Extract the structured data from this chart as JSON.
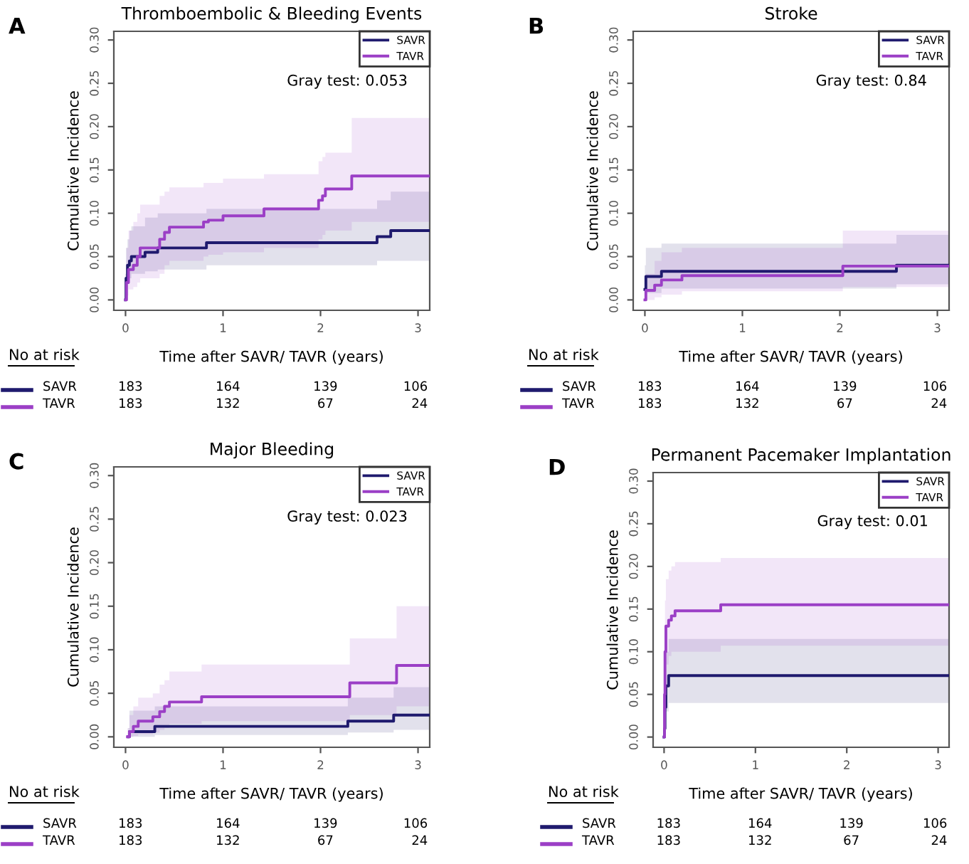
{
  "chart_data": [
    {
      "type": "step",
      "title": "Thromboembolic & Bleeding Events",
      "xlabel": "Time after SAVR/ TAVR (years)",
      "ylabel": "Cumulative Incidence",
      "xlim": [
        -0.12,
        3.12
      ],
      "xticks": [
        0,
        1,
        2,
        3
      ],
      "ylim": [
        -0.012,
        0.31
      ],
      "yticks": [
        {
          "value": 0,
          "label": "0.00"
        },
        {
          "value": 0.05,
          "label": "0.05"
        },
        {
          "value": 0.1,
          "label": "0.10"
        },
        {
          "value": 0.15,
          "label": "0.15"
        },
        {
          "value": 0.2,
          "label": "0.20"
        },
        {
          "value": 0.25,
          "label": "0.25"
        },
        {
          "value": 0.3,
          "label": "0.30"
        }
      ],
      "grid": false,
      "legend": "top right",
      "annotations": [
        "A",
        "Gray test: 0.053",
        "No at risk",
        "SAVR",
        "183",
        "164",
        "139",
        "106",
        "TAVR",
        "183",
        "132",
        "67",
        "24"
      ],
      "series": [
        {
          "name": "SAVR",
          "color": "#1f1a6e",
          "x": [
            0,
            0.005,
            0.02,
            0.04,
            0.06,
            0.2,
            0.33,
            0.83,
            2.58,
            2.72,
            3.12
          ],
          "values": [
            0,
            0.025,
            0.04,
            0.045,
            0.05,
            0.055,
            0.06,
            0.066,
            0.073,
            0.08,
            0.08
          ],
          "lower": [
            0,
            0.015,
            0.02,
            0.025,
            0.03,
            0.033,
            0.035,
            0.04,
            0.045,
            0.045,
            0.045
          ],
          "upper": [
            0.03,
            0.06,
            0.07,
            0.08,
            0.085,
            0.095,
            0.1,
            0.105,
            0.115,
            0.125,
            0.125
          ]
        },
        {
          "name": "TAVR",
          "color": "#9b3fc6",
          "x": [
            0,
            0.01,
            0.03,
            0.08,
            0.12,
            0.15,
            0.35,
            0.4,
            0.45,
            0.8,
            0.85,
            1.0,
            1.42,
            1.98,
            2.02,
            2.05,
            2.32,
            3.12
          ],
          "values": [
            0,
            0.02,
            0.035,
            0.04,
            0.05,
            0.06,
            0.07,
            0.078,
            0.084,
            0.09,
            0.092,
            0.097,
            0.105,
            0.115,
            0.12,
            0.128,
            0.143,
            0.143
          ],
          "lower": [
            0,
            0.005,
            0.012,
            0.015,
            0.02,
            0.025,
            0.03,
            0.04,
            0.045,
            0.05,
            0.052,
            0.055,
            0.06,
            0.07,
            0.075,
            0.08,
            0.09,
            0.09
          ],
          "upper": [
            0.03,
            0.06,
            0.08,
            0.09,
            0.1,
            0.11,
            0.12,
            0.125,
            0.13,
            0.135,
            0.135,
            0.14,
            0.145,
            0.16,
            0.165,
            0.17,
            0.21,
            0.21
          ]
        }
      ]
    },
    {
      "type": "step",
      "title": "Stroke",
      "xlabel": "Time after SAVR/ TAVR (years)",
      "ylabel": "Cumulative Incidence",
      "xlim": [
        -0.12,
        3.12
      ],
      "xticks": [
        0,
        1,
        2,
        3
      ],
      "ylim": [
        -0.012,
        0.31
      ],
      "yticks": [
        {
          "value": 0,
          "label": "0.00"
        },
        {
          "value": 0.05,
          "label": "0.05"
        },
        {
          "value": 0.1,
          "label": "0.10"
        },
        {
          "value": 0.15,
          "label": "0.15"
        },
        {
          "value": 0.2,
          "label": "0.20"
        },
        {
          "value": 0.25,
          "label": "0.25"
        },
        {
          "value": 0.3,
          "label": "0.30"
        }
      ],
      "grid": false,
      "legend": "top right",
      "annotations": [
        "B",
        "Gray test: 0.84",
        "No at risk",
        "SAVR",
        "183",
        "164",
        "139",
        "106",
        "TAVR",
        "183",
        "132",
        "67",
        "24"
      ],
      "series": [
        {
          "name": "SAVR",
          "color": "#1f1a6e",
          "x": [
            0,
            0.01,
            0.17,
            2.58,
            3.12
          ],
          "values": [
            0.012,
            0.027,
            0.033,
            0.04,
            0.04
          ],
          "lower": [
            0,
            0.008,
            0.013,
            0.018,
            0.018
          ],
          "upper": [
            0.04,
            0.06,
            0.065,
            0.075,
            0.075
          ]
        },
        {
          "name": "TAVR",
          "color": "#9b3fc6",
          "x": [
            0,
            0.01,
            0.1,
            0.17,
            0.38,
            2.03,
            3.12
          ],
          "values": [
            0,
            0.011,
            0.017,
            0.023,
            0.028,
            0.039,
            0.039
          ],
          "lower": [
            0,
            0,
            0.003,
            0.006,
            0.01,
            0.015,
            0.015
          ],
          "upper": [
            0.02,
            0.03,
            0.045,
            0.055,
            0.06,
            0.08,
            0.08
          ]
        }
      ]
    },
    {
      "type": "step",
      "title": "Major Bleeding",
      "xlabel": "Time after SAVR/ TAVR (years)",
      "ylabel": "Cumulative Incidence",
      "xlim": [
        -0.12,
        3.12
      ],
      "xticks": [
        0,
        1,
        2,
        3
      ],
      "ylim": [
        -0.012,
        0.31
      ],
      "yticks": [
        {
          "value": 0,
          "label": "0.00"
        },
        {
          "value": 0.05,
          "label": "0.05"
        },
        {
          "value": 0.1,
          "label": "0.10"
        },
        {
          "value": 0.15,
          "label": "0.15"
        },
        {
          "value": 0.2,
          "label": "0.20"
        },
        {
          "value": 0.25,
          "label": "0.25"
        },
        {
          "value": 0.3,
          "label": "0.30"
        }
      ],
      "grid": false,
      "legend": "top right",
      "annotations": [
        "C",
        "Gray test: 0.023",
        "No at risk",
        "SAVR",
        "183",
        "164",
        "139",
        "106",
        "TAVR",
        "183",
        "132",
        "67",
        "24"
      ],
      "series": [
        {
          "name": "SAVR",
          "color": "#1f1a6e",
          "x": [
            0.03,
            0.04,
            0.3,
            2.28,
            2.75,
            3.12
          ],
          "values": [
            0,
            0.006,
            0.012,
            0.018,
            0.025,
            0.025
          ],
          "lower": [
            0,
            0,
            0.002,
            0.005,
            0.008,
            0.008
          ],
          "upper": [
            0.01,
            0.03,
            0.035,
            0.045,
            0.057,
            0.057
          ]
        },
        {
          "name": "TAVR",
          "color": "#9b3fc6",
          "x": [
            0.02,
            0.04,
            0.08,
            0.13,
            0.28,
            0.35,
            0.4,
            0.45,
            0.78,
            2.3,
            2.78,
            3.12
          ],
          "values": [
            0,
            0.006,
            0.012,
            0.018,
            0.023,
            0.029,
            0.035,
            0.04,
            0.046,
            0.062,
            0.082,
            0.082
          ],
          "lower": [
            0,
            0,
            0.001,
            0.003,
            0.005,
            0.008,
            0.01,
            0.015,
            0.018,
            0.025,
            0.035,
            0.035
          ],
          "upper": [
            0.01,
            0.025,
            0.035,
            0.045,
            0.05,
            0.06,
            0.065,
            0.075,
            0.083,
            0.113,
            0.15,
            0.15
          ]
        }
      ]
    },
    {
      "type": "step",
      "title": "Permanent Pacemaker Implantation",
      "xlabel": "Time after SAVR/ TAVR (years)",
      "ylabel": "Cumulative Incidence",
      "xlim": [
        -0.12,
        3.12
      ],
      "xticks": [
        0,
        1,
        2,
        3
      ],
      "ylim": [
        -0.012,
        0.31
      ],
      "yticks": [
        {
          "value": 0,
          "label": "0.00"
        },
        {
          "value": 0.05,
          "label": "0.05"
        },
        {
          "value": 0.1,
          "label": "0.10"
        },
        {
          "value": 0.15,
          "label": "0.15"
        },
        {
          "value": 0.2,
          "label": "0.20"
        },
        {
          "value": 0.25,
          "label": "0.25"
        },
        {
          "value": 0.3,
          "label": "0.30"
        }
      ],
      "grid": false,
      "legend": "top right",
      "annotations": [
        "D",
        "Gray test: 0.01",
        "No at risk",
        "SAVR",
        "183",
        "164",
        "139",
        "106",
        "TAVR",
        "183",
        "132",
        "67",
        "24"
      ],
      "series": [
        {
          "name": "SAVR",
          "color": "#1f1a6e",
          "x": [
            0,
            0.005,
            0.01,
            0.02,
            0.05,
            3.12
          ],
          "values": [
            0,
            0.01,
            0.035,
            0.06,
            0.072,
            0.072
          ],
          "lower": [
            0,
            0,
            0.01,
            0.03,
            0.04,
            0.04
          ],
          "upper": [
            0.01,
            0.04,
            0.07,
            0.1,
            0.115,
            0.115
          ]
        },
        {
          "name": "TAVR",
          "color": "#9b3fc6",
          "x": [
            0,
            0.005,
            0.01,
            0.02,
            0.05,
            0.08,
            0.12,
            0.62,
            3.12
          ],
          "values": [
            0,
            0.05,
            0.1,
            0.13,
            0.137,
            0.142,
            0.148,
            0.155,
            0.155
          ],
          "lower": [
            0,
            0.01,
            0.05,
            0.085,
            0.095,
            0.1,
            0.1,
            0.107,
            0.107
          ],
          "upper": [
            0.01,
            0.09,
            0.16,
            0.185,
            0.195,
            0.2,
            0.205,
            0.21,
            0.21
          ]
        }
      ]
    }
  ]
}
